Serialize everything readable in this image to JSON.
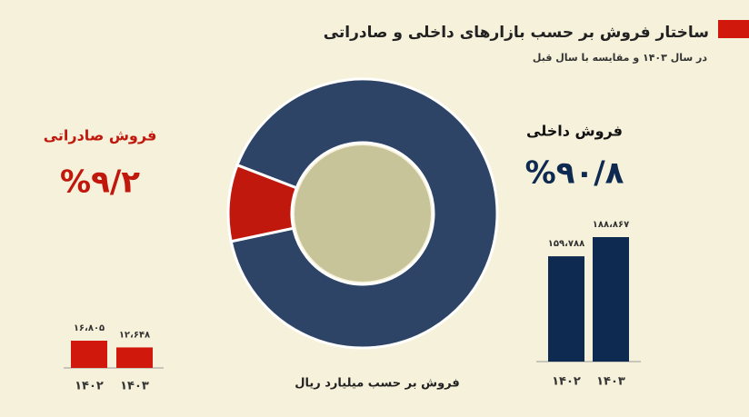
{
  "header": {
    "title": "ساختار فروش بر حسب بازارهای داخلی و صادراتی",
    "subtitle": "در سال ۱۴۰۳ و مقایسه با سال قبل"
  },
  "footer": "فروش  بر حسب میلیارد ریال",
  "chart_data": [
    {
      "type": "pie",
      "donut": true,
      "categories": [
        "فروش داخلی",
        "فروش صادراتی"
      ],
      "values": [
        90.8,
        9.2
      ],
      "value_labels": [
        "%۹۰/۸",
        "%۹/۲"
      ],
      "colors": [
        "#2e4466",
        "#c0180c"
      ]
    },
    {
      "type": "bar",
      "categories": [
        "۱۴۰۲",
        "۱۴۰۳"
      ],
      "values": [
        159788,
        188867
      ],
      "value_labels": [
        "۱۵۹،۷۸۸",
        "۱۸۸،۸۶۷"
      ],
      "color": "#0f2a50"
    },
    {
      "type": "bar",
      "categories": [
        "۱۴۰۲",
        "۱۴۰۳"
      ],
      "values": [
        16805,
        12648
      ],
      "value_labels": [
        "۱۶،۸۰۵",
        "۱۲،۶۴۸"
      ],
      "color": "#d0180c"
    }
  ]
}
